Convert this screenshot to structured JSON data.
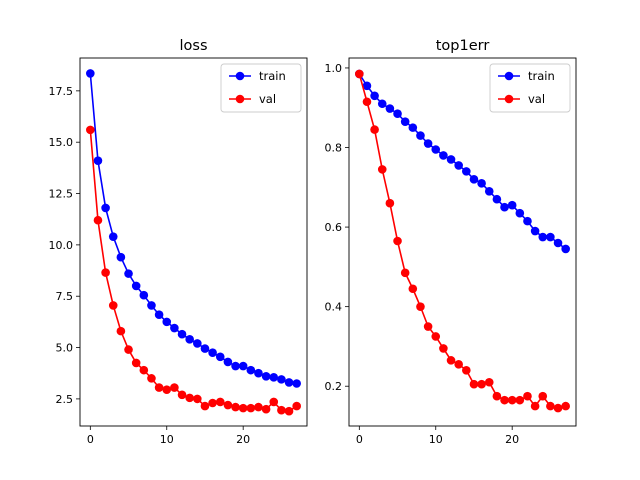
{
  "chart_data": [
    {
      "type": "line",
      "title": "loss",
      "xlabel": "",
      "ylabel": "",
      "xlim": [
        -1.35,
        28.35
      ],
      "ylim": [
        1.18,
        19.1
      ],
      "xticks": [
        0,
        10,
        20
      ],
      "xtick_labels": [
        "0",
        "10",
        "20"
      ],
      "yticks": [
        2.5,
        5.0,
        7.5,
        10.0,
        12.5,
        15.0,
        17.5
      ],
      "ytick_labels": [
        "2.5",
        "5.0",
        "7.5",
        "10.0",
        "12.5",
        "15.0",
        "17.5"
      ],
      "legend_position": "top-right",
      "x": [
        0,
        1,
        2,
        3,
        4,
        5,
        6,
        7,
        8,
        9,
        10,
        11,
        12,
        13,
        14,
        15,
        16,
        17,
        18,
        19,
        20,
        21,
        22,
        23,
        24,
        25,
        26,
        27
      ],
      "series": [
        {
          "name": "train",
          "color": "#0000ff",
          "values": [
            18.35,
            14.1,
            11.8,
            10.4,
            9.4,
            8.6,
            8.0,
            7.55,
            7.05,
            6.6,
            6.25,
            5.95,
            5.65,
            5.4,
            5.2,
            4.95,
            4.75,
            4.55,
            4.3,
            4.1,
            4.1,
            3.9,
            3.75,
            3.6,
            3.55,
            3.45,
            3.3,
            3.25
          ]
        },
        {
          "name": "val",
          "color": "#ff0000",
          "values": [
            15.6,
            11.2,
            8.65,
            7.05,
            5.8,
            4.9,
            4.25,
            3.9,
            3.5,
            3.05,
            2.95,
            3.05,
            2.7,
            2.55,
            2.5,
            2.15,
            2.3,
            2.35,
            2.2,
            2.1,
            2.05,
            2.05,
            2.1,
            2.0,
            2.35,
            1.95,
            1.9,
            2.15
          ]
        }
      ]
    },
    {
      "type": "line",
      "title": "top1err",
      "xlabel": "",
      "ylabel": "",
      "xlim": [
        -1.35,
        28.35
      ],
      "ylim": [
        0.1,
        1.025
      ],
      "xticks": [
        0,
        10,
        20
      ],
      "xtick_labels": [
        "0",
        "10",
        "20"
      ],
      "yticks": [
        0.2,
        0.4,
        0.6,
        0.8,
        1.0
      ],
      "ytick_labels": [
        "0.2",
        "0.4",
        "0.6",
        "0.8",
        "1.0"
      ],
      "legend_position": "top-right",
      "x": [
        0,
        1,
        2,
        3,
        4,
        5,
        6,
        7,
        8,
        9,
        10,
        11,
        12,
        13,
        14,
        15,
        16,
        17,
        18,
        19,
        20,
        21,
        22,
        23,
        24,
        25,
        26,
        27
      ],
      "series": [
        {
          "name": "train",
          "color": "#0000ff",
          "values": [
            0.985,
            0.955,
            0.93,
            0.91,
            0.898,
            0.885,
            0.865,
            0.85,
            0.83,
            0.81,
            0.795,
            0.78,
            0.77,
            0.755,
            0.74,
            0.72,
            0.71,
            0.69,
            0.67,
            0.65,
            0.655,
            0.635,
            0.615,
            0.59,
            0.575,
            0.575,
            0.56,
            0.545
          ]
        },
        {
          "name": "val",
          "color": "#ff0000",
          "values": [
            0.985,
            0.915,
            0.845,
            0.745,
            0.66,
            0.565,
            0.485,
            0.445,
            0.4,
            0.35,
            0.325,
            0.295,
            0.265,
            0.255,
            0.24,
            0.205,
            0.205,
            0.21,
            0.175,
            0.165,
            0.165,
            0.165,
            0.175,
            0.15,
            0.175,
            0.15,
            0.145,
            0.15
          ]
        }
      ]
    }
  ]
}
